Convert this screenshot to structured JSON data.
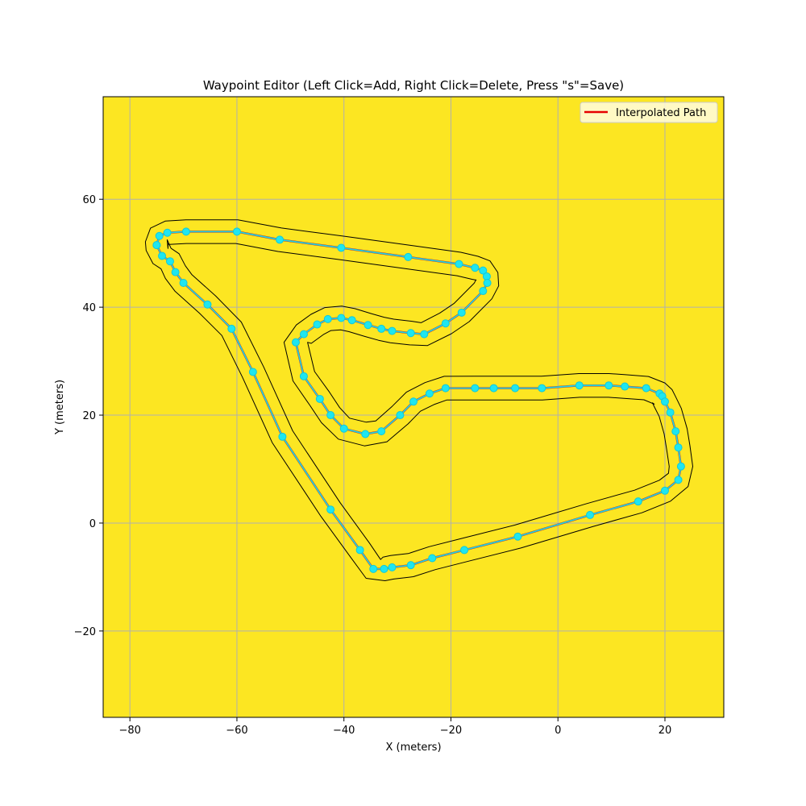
{
  "chart_data": {
    "type": "line",
    "title": "Waypoint Editor (Left Click=Add, Right Click=Delete, Press \"s\"=Save)",
    "xlabel": "X (meters)",
    "ylabel": "Y (meters)",
    "xlim": [
      -85,
      31
    ],
    "ylim": [
      -36,
      79
    ],
    "xticks": [
      -80,
      -60,
      -40,
      -20,
      0,
      20
    ],
    "yticks": [
      -20,
      0,
      20,
      40,
      60
    ],
    "xtick_labels": [
      "−80",
      "−60",
      "−40",
      "−20",
      "0",
      "20"
    ],
    "ytick_labels": [
      "−20",
      "0",
      "20",
      "40",
      "60"
    ],
    "grid": true,
    "background_color": "#fce622",
    "legend": {
      "position": "top-right",
      "entries": [
        {
          "label": "Interpolated Path",
          "color": "#e60000"
        }
      ]
    },
    "track_half_width": 2.2,
    "series": [
      {
        "name": "Interpolated Path",
        "color": "#e60000",
        "x": [
          -75,
          -74.5,
          -73,
          -69.5,
          -60,
          -52,
          -40.5,
          -28,
          -18.5,
          -15.5,
          -14,
          -13.3,
          -13.2,
          -14,
          -18,
          -21,
          -25,
          -27.5,
          -31,
          -33,
          -35.5,
          -38.5,
          -40.5,
          -43,
          -45,
          -47.5,
          -49,
          -47.5,
          -44.5,
          -42.5,
          -40,
          -36,
          -33,
          -29.5,
          -27,
          -24,
          -21,
          -15.5,
          -12,
          -8,
          -3,
          4,
          9.5,
          12.5,
          16.5,
          19,
          19.5,
          20,
          21,
          22,
          22.5,
          23,
          22.5,
          20,
          15,
          6,
          -7.5,
          -17.5,
          -23.5,
          -27.5,
          -31,
          -32.5,
          -34.5,
          -37,
          -42.5,
          -51.5,
          -57,
          -61,
          -65.5,
          -70,
          -71.5,
          -72.5,
          -74,
          -75
        ],
        "y": [
          51.5,
          53.2,
          53.8,
          54,
          54,
          52.5,
          51,
          49.3,
          48,
          47.3,
          46.8,
          45.7,
          44.5,
          43,
          39,
          37,
          35,
          35.2,
          35.6,
          36,
          36.7,
          37.6,
          38,
          37.8,
          36.8,
          35,
          33.5,
          27.2,
          23,
          20,
          17.5,
          16.5,
          17,
          20,
          22.5,
          24,
          25,
          25,
          25,
          25,
          25,
          25.5,
          25.5,
          25.3,
          25,
          24,
          23.5,
          22.5,
          20.5,
          17,
          14,
          10.5,
          8,
          6,
          4,
          1.5,
          -2.5,
          -5,
          -6.5,
          -7.8,
          -8.2,
          -8.5,
          -8.5,
          -5,
          2.5,
          16,
          28,
          36,
          40.5,
          44.5,
          46.5,
          48.5,
          49.5,
          51.5
        ]
      }
    ]
  }
}
